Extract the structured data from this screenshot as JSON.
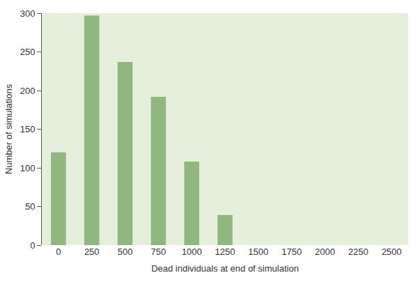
{
  "chart_data": {
    "type": "bar",
    "xlabel": "Dead individuals at end of simulation",
    "ylabel": "Number of simulations",
    "categories": [
      "0",
      "250",
      "500",
      "750",
      "1000",
      "1250",
      "1500",
      "1750",
      "2000",
      "2250",
      "2500"
    ],
    "values": [
      120,
      297,
      237,
      192,
      108,
      39,
      0,
      0,
      0,
      0,
      0
    ],
    "color": "#8fb77f",
    "ylim": [
      0,
      300
    ],
    "yticks": [
      0,
      50,
      100,
      150,
      200,
      250,
      300
    ],
    "grid": false
  }
}
